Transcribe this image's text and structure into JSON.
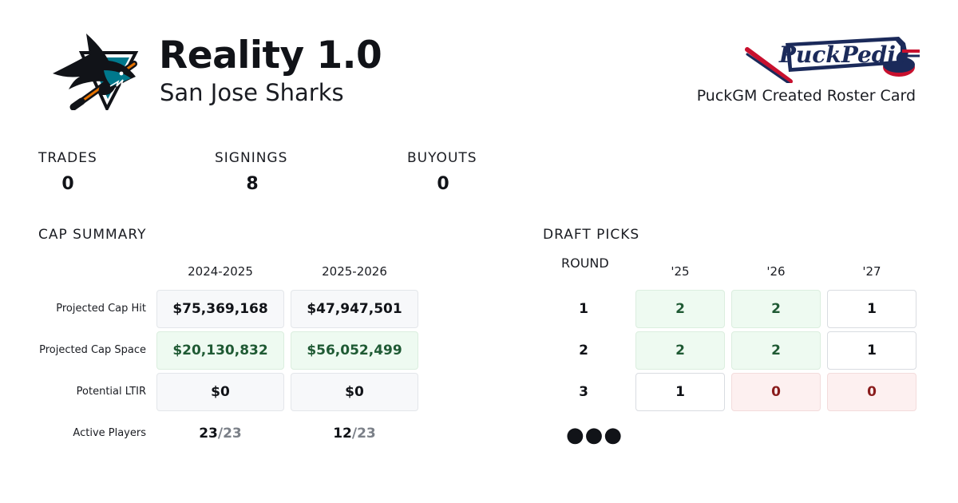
{
  "header": {
    "title": "Reality 1.0",
    "team": "San Jose Sharks",
    "brand": "PuckPedia",
    "caption": "PuckGM Created Roster Card"
  },
  "stats": [
    {
      "label": "TRADES",
      "value": "0"
    },
    {
      "label": "SIGNINGS",
      "value": "8"
    },
    {
      "label": "BUYOUTS",
      "value": "0"
    }
  ],
  "cap_summary": {
    "title": "CAP SUMMARY",
    "seasons": [
      "2024-2025",
      "2025-2026"
    ],
    "rows": [
      {
        "label": "Projected Cap Hit",
        "values": [
          "$75,369,168",
          "$47,947,501"
        ]
      },
      {
        "label": "Projected Cap Space",
        "values": [
          "$20,130,832",
          "$56,052,499"
        ]
      },
      {
        "label": "Potential LTIR",
        "values": [
          "$0",
          "$0"
        ]
      }
    ],
    "active_players": {
      "label": "Active Players",
      "values": [
        {
          "count": "23",
          "max": "/23"
        },
        {
          "count": "12",
          "max": "/23"
        }
      ]
    }
  },
  "draft_picks": {
    "title": "DRAFT PICKS",
    "round_label": "ROUND",
    "years": [
      "'25",
      "'26",
      "'27"
    ],
    "rounds": [
      {
        "round": "1",
        "picks": [
          "2",
          "2",
          "1"
        ]
      },
      {
        "round": "2",
        "picks": [
          "2",
          "2",
          "1"
        ]
      },
      {
        "round": "3",
        "picks": [
          "1",
          "0",
          "0"
        ]
      }
    ],
    "more": "●●●"
  },
  "colors": {
    "positive_bg": "#eefaf1",
    "positive_text": "#1f5a34",
    "negative_bg": "#fdf0f0",
    "negative_text": "#8a1c1c",
    "teal": "#00788c",
    "brand_red": "#c8102e",
    "brand_navy": "#1b2a5a"
  },
  "icons": [
    "sharks-logo",
    "puckpedia-logo"
  ]
}
